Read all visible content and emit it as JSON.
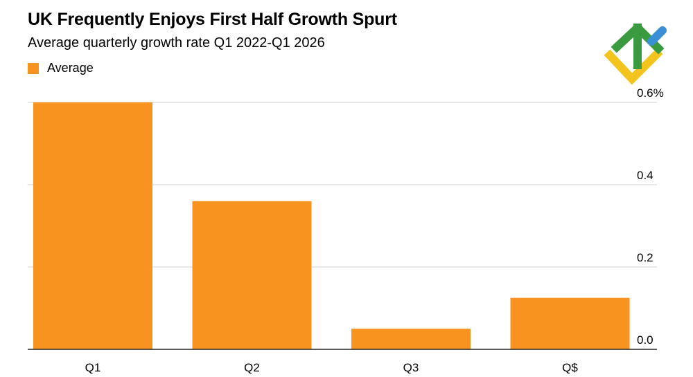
{
  "header": {
    "title": "UK Frequently Enjoys First Half Growth Spurt",
    "subtitle": "Average quarterly growth rate Q1 2022-Q1 2026"
  },
  "legend": {
    "label": "Average"
  },
  "colors": {
    "bar": "#f7931e",
    "grid": "#d0d0d0",
    "axis": "#222222"
  },
  "chart_data": {
    "type": "bar",
    "title": "UK Frequently Enjoys First Half Growth Spurt",
    "subtitle": "Average quarterly growth rate Q1 2022-Q1 2026",
    "categories": [
      "Q1",
      "Q2",
      "Q3",
      "Q$"
    ],
    "series": [
      {
        "name": "Average",
        "values": [
          0.6,
          0.36,
          0.05,
          0.125
        ]
      }
    ],
    "ylim": [
      0,
      0.6
    ],
    "y_ticks": [
      0,
      0.2,
      0.4,
      0.6
    ],
    "y_tick_labels": [
      "0.0",
      "0.2",
      "0.4",
      "0.6%"
    ],
    "y_axis_side": "right",
    "grid": true,
    "legend_position": "top-left"
  }
}
